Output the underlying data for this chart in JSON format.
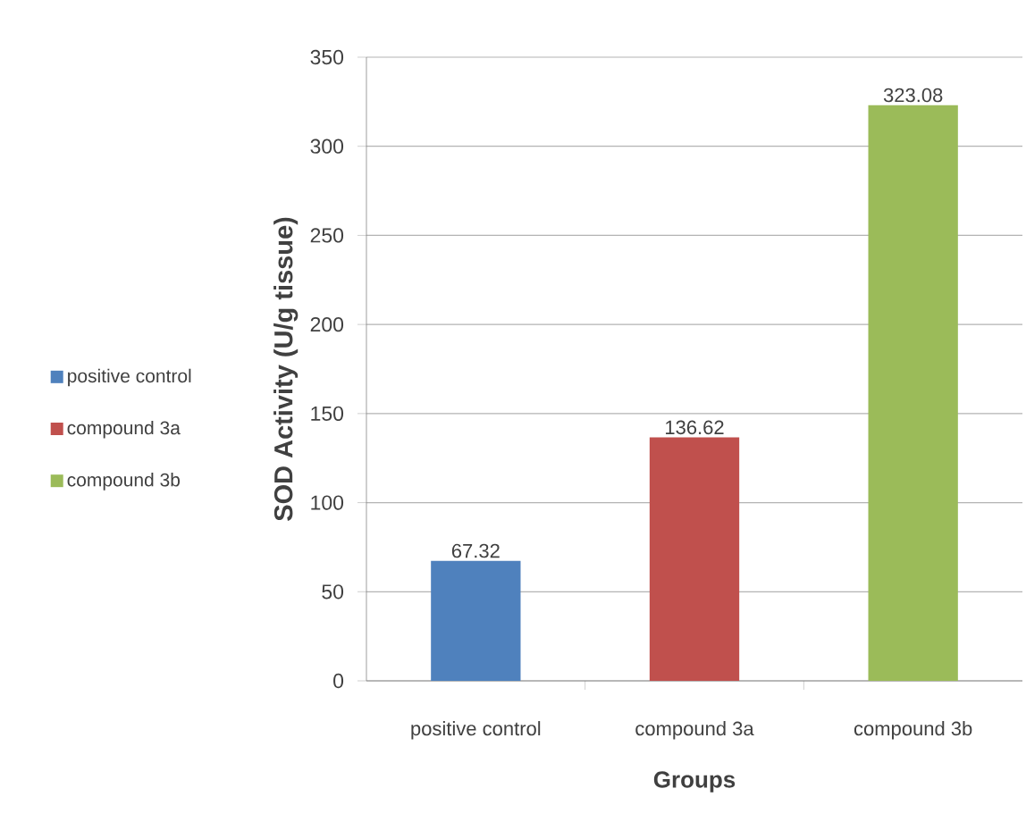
{
  "chart_data": {
    "type": "bar",
    "xlabel": "Groups",
    "ylabel": "SOD Activity (U/g tissue)",
    "categories": [
      "positive control",
      "compound 3a",
      "compound 3b"
    ],
    "series": [
      {
        "name": "positive control",
        "color": "#4f81bd",
        "values": [
          67.32,
          null,
          null
        ]
      },
      {
        "name": "compound 3a",
        "color": "#c0504d",
        "values": [
          null,
          136.62,
          null
        ]
      },
      {
        "name": "compound 3b",
        "color": "#9bbb59",
        "values": [
          null,
          null,
          323.08
        ]
      }
    ],
    "ylim": [
      0,
      350
    ],
    "yticks": [
      0,
      50,
      100,
      150,
      200,
      250,
      300,
      350
    ],
    "grid": "y",
    "legend": "left",
    "data_labels": true
  }
}
